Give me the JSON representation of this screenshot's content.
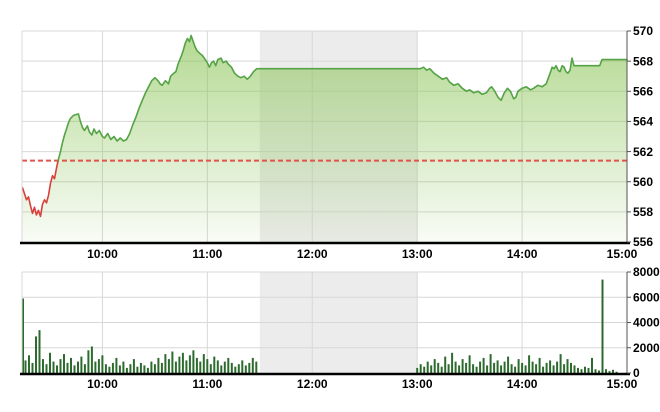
{
  "colors": {
    "grid": "#d8d8d8",
    "session_band": "#ececec",
    "axis_dark": "#555555",
    "axis_black": "#000000",
    "label": "#000000",
    "line_above": "#54a345",
    "line_below": "#d8413a",
    "reference": "#e2534b",
    "fill_top": "rgba(134,194,80,0.62)",
    "fill_bottom": "rgba(134,194,80,0.05)",
    "volume_bar": "#2d6a2e"
  },
  "chart_data": [
    {
      "type": "area",
      "title": "",
      "xlabel": "",
      "ylabel": "",
      "legend": "none",
      "grid": true,
      "x_axis": {
        "tick_labels": [
          "10:00",
          "11:00",
          "12:00",
          "13:00",
          "14:00",
          "15:00"
        ],
        "tick_hours": [
          10,
          11,
          12,
          13,
          14,
          15
        ],
        "range_hours": [
          9.2333,
          15
        ]
      },
      "y_axis": {
        "side": "right",
        "tick_labels": [
          "570",
          "568",
          "566",
          "564",
          "562",
          "560",
          "558",
          "556"
        ],
        "ticks": [
          570,
          568,
          566,
          564,
          562,
          560,
          558,
          556
        ],
        "range": [
          556,
          570
        ]
      },
      "reference_value": 561.4,
      "session_break_hours": [
        11.5,
        13.0
      ],
      "points": [
        [
          9.238,
          559.6
        ],
        [
          9.257,
          559.2
        ],
        [
          9.276,
          558.8
        ],
        [
          9.295,
          559.0
        ],
        [
          9.314,
          558.4
        ],
        [
          9.333,
          557.9
        ],
        [
          9.352,
          558.3
        ],
        [
          9.371,
          557.8
        ],
        [
          9.39,
          558.1
        ],
        [
          9.41,
          557.7
        ],
        [
          9.429,
          558.5
        ],
        [
          9.448,
          558.8
        ],
        [
          9.467,
          558.6
        ],
        [
          9.486,
          559.1
        ],
        [
          9.505,
          559.9
        ],
        [
          9.524,
          560.4
        ],
        [
          9.543,
          560.2
        ],
        [
          9.562,
          560.9
        ],
        [
          9.581,
          561.5
        ],
        [
          9.6,
          562.0
        ],
        [
          9.619,
          562.6
        ],
        [
          9.638,
          563.1
        ],
        [
          9.657,
          563.5
        ],
        [
          9.676,
          563.9
        ],
        [
          9.695,
          564.2
        ],
        [
          9.724,
          564.4
        ],
        [
          9.771,
          564.5
        ],
        [
          9.79,
          564.0
        ],
        [
          9.81,
          563.6
        ],
        [
          9.829,
          563.4
        ],
        [
          9.857,
          563.7
        ],
        [
          9.876,
          563.3
        ],
        [
          9.9,
          563.1
        ],
        [
          9.92,
          563.5
        ],
        [
          9.943,
          563.2
        ],
        [
          9.97,
          563.4
        ],
        [
          10.0,
          563.0
        ],
        [
          10.02,
          562.9
        ],
        [
          10.05,
          563.2
        ],
        [
          10.08,
          562.8
        ],
        [
          10.11,
          563.0
        ],
        [
          10.14,
          562.7
        ],
        [
          10.17,
          562.9
        ],
        [
          10.2,
          562.7
        ],
        [
          10.23,
          562.8
        ],
        [
          10.26,
          563.2
        ],
        [
          10.29,
          563.8
        ],
        [
          10.32,
          564.3
        ],
        [
          10.35,
          564.9
        ],
        [
          10.38,
          565.4
        ],
        [
          10.41,
          565.9
        ],
        [
          10.44,
          566.3
        ],
        [
          10.47,
          566.7
        ],
        [
          10.5,
          566.9
        ],
        [
          10.53,
          566.7
        ],
        [
          10.55,
          566.5
        ],
        [
          10.57,
          566.4
        ],
        [
          10.6,
          566.7
        ],
        [
          10.63,
          566.5
        ],
        [
          10.65,
          567.0
        ],
        [
          10.68,
          567.2
        ],
        [
          10.7,
          567.3
        ],
        [
          10.72,
          567.8
        ],
        [
          10.75,
          568.3
        ],
        [
          10.77,
          568.7
        ],
        [
          10.79,
          569.2
        ],
        [
          10.81,
          569.5
        ],
        [
          10.83,
          569.3
        ],
        [
          10.845,
          569.7
        ],
        [
          10.86,
          569.4
        ],
        [
          10.88,
          569.0
        ],
        [
          10.9,
          568.7
        ],
        [
          10.93,
          568.5
        ],
        [
          10.95,
          568.4
        ],
        [
          10.98,
          568.1
        ],
        [
          11.0,
          567.9
        ],
        [
          11.02,
          567.6
        ],
        [
          11.04,
          567.9
        ],
        [
          11.06,
          568.0
        ],
        [
          11.08,
          567.7
        ],
        [
          11.1,
          568.1
        ],
        [
          11.13,
          568.2
        ],
        [
          11.15,
          567.9
        ],
        [
          11.18,
          568.0
        ],
        [
          11.2,
          567.8
        ],
        [
          11.23,
          567.6
        ],
        [
          11.26,
          567.2
        ],
        [
          11.29,
          567.0
        ],
        [
          11.32,
          566.9
        ],
        [
          11.35,
          567.0
        ],
        [
          11.38,
          566.8
        ],
        [
          11.41,
          567.0
        ],
        [
          11.44,
          567.3
        ],
        [
          11.47,
          567.5
        ],
        [
          11.5,
          567.5
        ],
        [
          13.0,
          567.5
        ],
        [
          13.03,
          567.5
        ],
        [
          13.06,
          567.6
        ],
        [
          13.09,
          567.4
        ],
        [
          13.12,
          567.5
        ],
        [
          13.16,
          567.2
        ],
        [
          13.2,
          567.0
        ],
        [
          13.24,
          566.8
        ],
        [
          13.28,
          566.9
        ],
        [
          13.31,
          566.6
        ],
        [
          13.35,
          566.4
        ],
        [
          13.39,
          566.5
        ],
        [
          13.43,
          566.2
        ],
        [
          13.47,
          566.0
        ],
        [
          13.5,
          566.1
        ],
        [
          13.54,
          565.9
        ],
        [
          13.58,
          566.0
        ],
        [
          13.62,
          565.8
        ],
        [
          13.66,
          565.9
        ],
        [
          13.69,
          566.2
        ],
        [
          13.71,
          566.3
        ],
        [
          13.74,
          566.0
        ],
        [
          13.77,
          565.6
        ],
        [
          13.8,
          565.4
        ],
        [
          13.83,
          565.9
        ],
        [
          13.86,
          566.2
        ],
        [
          13.89,
          566.0
        ],
        [
          13.92,
          565.5
        ],
        [
          13.94,
          565.6
        ],
        [
          13.96,
          566.0
        ],
        [
          14.0,
          566.2
        ],
        [
          14.04,
          566.3
        ],
        [
          14.08,
          566.1
        ],
        [
          14.11,
          566.2
        ],
        [
          14.15,
          566.4
        ],
        [
          14.19,
          566.3
        ],
        [
          14.23,
          566.5
        ],
        [
          14.267,
          567.2
        ],
        [
          14.286,
          567.6
        ],
        [
          14.305,
          567.5
        ],
        [
          14.324,
          567.7
        ],
        [
          14.343,
          567.4
        ],
        [
          14.362,
          567.3
        ],
        [
          14.381,
          567.7
        ],
        [
          14.4,
          567.6
        ],
        [
          14.419,
          567.3
        ],
        [
          14.438,
          567.2
        ],
        [
          14.457,
          567.4
        ],
        [
          14.476,
          568.2
        ],
        [
          14.495,
          567.7
        ],
        [
          14.55,
          567.7
        ],
        [
          14.6,
          567.7
        ],
        [
          14.65,
          567.7
        ],
        [
          14.7,
          567.7
        ],
        [
          14.74,
          567.7
        ],
        [
          14.762,
          568.1
        ],
        [
          14.85,
          568.1
        ],
        [
          14.933,
          568.1
        ],
        [
          15.0,
          568.1
        ]
      ]
    },
    {
      "type": "bar",
      "title": "",
      "grid": true,
      "x_axis": {
        "tick_labels": [
          "10:00",
          "11:00",
          "12:00",
          "13:00",
          "14:00",
          "15:00"
        ],
        "tick_hours": [
          10,
          11,
          12,
          13,
          14,
          15
        ],
        "range_hours": [
          9.2333,
          15
        ]
      },
      "y_axis": {
        "side": "right",
        "tick_labels": [
          "8000",
          "6000",
          "4000",
          "2000",
          "0"
        ],
        "ticks": [
          8000,
          6000,
          4000,
          2000,
          0
        ],
        "range": [
          0,
          8000
        ]
      },
      "session_break_hours": [
        11.5,
        13.0
      ],
      "sessions": [
        {
          "start_hour": 9.2333,
          "step_hours": 0.033333,
          "values": [
            5900,
            1000,
            1400,
            800,
            2900,
            3400,
            1100,
            700,
            1600,
            900,
            600,
            1100,
            1500,
            800,
            1200,
            600,
            900,
            1300,
            700,
            1800,
            2100,
            900,
            1100,
            1400,
            700,
            500,
            800,
            1200,
            600,
            900,
            400,
            700,
            1100,
            500,
            800,
            600,
            400,
            900,
            700,
            1200,
            800,
            1500,
            1100,
            1700,
            900,
            1300,
            1600,
            1000,
            1400,
            1800,
            1200,
            900,
            1500,
            1100,
            700,
            1300,
            1000,
            600,
            900,
            1200,
            800,
            500,
            700,
            1000,
            600,
            800,
            1200,
            900
          ]
        },
        {
          "start_hour": 13.0,
          "step_hours": 0.033333,
          "values": [
            400,
            700,
            500,
            900,
            600,
            1100,
            800,
            500,
            1300,
            700,
            1600,
            900,
            600,
            1100,
            800,
            1400,
            700,
            500,
            900,
            1200,
            600,
            1500,
            800,
            1000,
            600,
            900,
            1300,
            700,
            500,
            1100,
            800,
            600,
            1400,
            900,
            700,
            1200,
            500,
            800,
            1000,
            600,
            900,
            1500,
            700,
            1100,
            800,
            600,
            400,
            300,
            500,
            400,
            1200,
            300,
            200,
            7400,
            300,
            150,
            250,
            100
          ]
        }
      ]
    }
  ]
}
